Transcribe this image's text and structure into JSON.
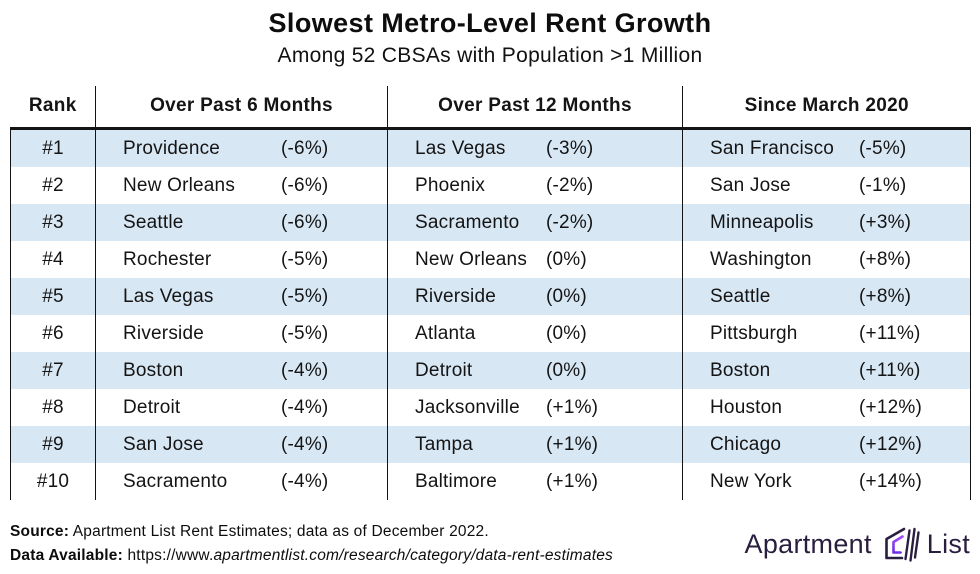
{
  "header": {
    "title": "Slowest Metro-Level Rent Growth",
    "subtitle": "Among 52 CBSAs with Population >1 Million"
  },
  "table": {
    "columns": {
      "rank": "Rank",
      "m6": "Over Past 6 Months",
      "m12": "Over Past 12 Months",
      "since": "Since March 2020"
    },
    "rows": [
      {
        "rank": "#1",
        "m6_city": "Providence",
        "m6_pct": "(-6%)",
        "m12_city": "Las Vegas",
        "m12_pct": "(-3%)",
        "since_city": "San Francisco",
        "since_pct": "(-5%)"
      },
      {
        "rank": "#2",
        "m6_city": "New Orleans",
        "m6_pct": "(-6%)",
        "m12_city": "Phoenix",
        "m12_pct": "(-2%)",
        "since_city": "San Jose",
        "since_pct": "(-1%)"
      },
      {
        "rank": "#3",
        "m6_city": "Seattle",
        "m6_pct": "(-6%)",
        "m12_city": "Sacramento",
        "m12_pct": "(-2%)",
        "since_city": "Minneapolis",
        "since_pct": "(+3%)"
      },
      {
        "rank": "#4",
        "m6_city": "Rochester",
        "m6_pct": "(-5%)",
        "m12_city": "New Orleans",
        "m12_pct": "(0%)",
        "since_city": "Washington",
        "since_pct": "(+8%)"
      },
      {
        "rank": "#5",
        "m6_city": "Las Vegas",
        "m6_pct": "(-5%)",
        "m12_city": "Riverside",
        "m12_pct": "(0%)",
        "since_city": "Seattle",
        "since_pct": "(+8%)"
      },
      {
        "rank": "#6",
        "m6_city": "Riverside",
        "m6_pct": "(-5%)",
        "m12_city": "Atlanta",
        "m12_pct": "(0%)",
        "since_city": "Pittsburgh",
        "since_pct": "(+11%)"
      },
      {
        "rank": "#7",
        "m6_city": "Boston",
        "m6_pct": "(-4%)",
        "m12_city": "Detroit",
        "m12_pct": "(0%)",
        "since_city": "Boston",
        "since_pct": "(+11%)"
      },
      {
        "rank": "#8",
        "m6_city": "Detroit",
        "m6_pct": "(-4%)",
        "m12_city": "Jacksonville",
        "m12_pct": "(+1%)",
        "since_city": "Houston",
        "since_pct": "(+12%)"
      },
      {
        "rank": "#9",
        "m6_city": "San Jose",
        "m6_pct": "(-4%)",
        "m12_city": "Tampa",
        "m12_pct": "(+1%)",
        "since_city": "Chicago",
        "since_pct": "(+12%)"
      },
      {
        "rank": "#10",
        "m6_city": "Sacramento",
        "m6_pct": "(-4%)",
        "m12_city": "Baltimore",
        "m12_pct": "(+1%)",
        "since_city": "New York",
        "since_pct": "(+14%)"
      }
    ]
  },
  "chart_data": {
    "type": "table",
    "title": "Slowest Metro-Level Rent Growth",
    "subtitle": "Among 52 CBSAs with Population >1 Million",
    "columns": [
      "Rank",
      "Over Past 6 Months",
      "Over Past 12 Months",
      "Since March 2020"
    ],
    "ranks": [
      "#1",
      "#2",
      "#3",
      "#4",
      "#5",
      "#6",
      "#7",
      "#8",
      "#9",
      "#10"
    ],
    "series": [
      {
        "name": "Over Past 6 Months",
        "cities": [
          "Providence",
          "New Orleans",
          "Seattle",
          "Rochester",
          "Las Vegas",
          "Riverside",
          "Boston",
          "Detroit",
          "San Jose",
          "Sacramento"
        ],
        "pct_change": [
          -6,
          -6,
          -6,
          -5,
          -5,
          -5,
          -4,
          -4,
          -4,
          -4
        ]
      },
      {
        "name": "Over Past 12 Months",
        "cities": [
          "Las Vegas",
          "Phoenix",
          "Sacramento",
          "New Orleans",
          "Riverside",
          "Atlanta",
          "Detroit",
          "Jacksonville",
          "Tampa",
          "Baltimore"
        ],
        "pct_change": [
          -3,
          -2,
          -2,
          0,
          0,
          0,
          0,
          1,
          1,
          1
        ]
      },
      {
        "name": "Since March 2020",
        "cities": [
          "San Francisco",
          "San Jose",
          "Minneapolis",
          "Washington",
          "Seattle",
          "Pittsburgh",
          "Boston",
          "Houston",
          "Chicago",
          "New York"
        ],
        "pct_change": [
          -5,
          -1,
          3,
          8,
          8,
          11,
          11,
          12,
          12,
          14
        ]
      }
    ]
  },
  "footer": {
    "source_label": "Source:",
    "source_text": " Apartment List Rent Estimates; data as of December 2022.",
    "data_label": "Data Available:",
    "url_prefix": " https://www.",
    "url_italic": "apartmentlist.com/research/category/data-rent-estimates",
    "logo": {
      "word1": "Apartment",
      "word2": "List",
      "icon": "apartment-list-house-icon"
    }
  },
  "colors": {
    "row_stripe_blue": "#d8e7f4",
    "text_black": "#141414",
    "logo_navy": "#2a1e3f",
    "logo_purple_top": "#a24df6",
    "logo_purple_bottom": "#6d2ce8"
  }
}
